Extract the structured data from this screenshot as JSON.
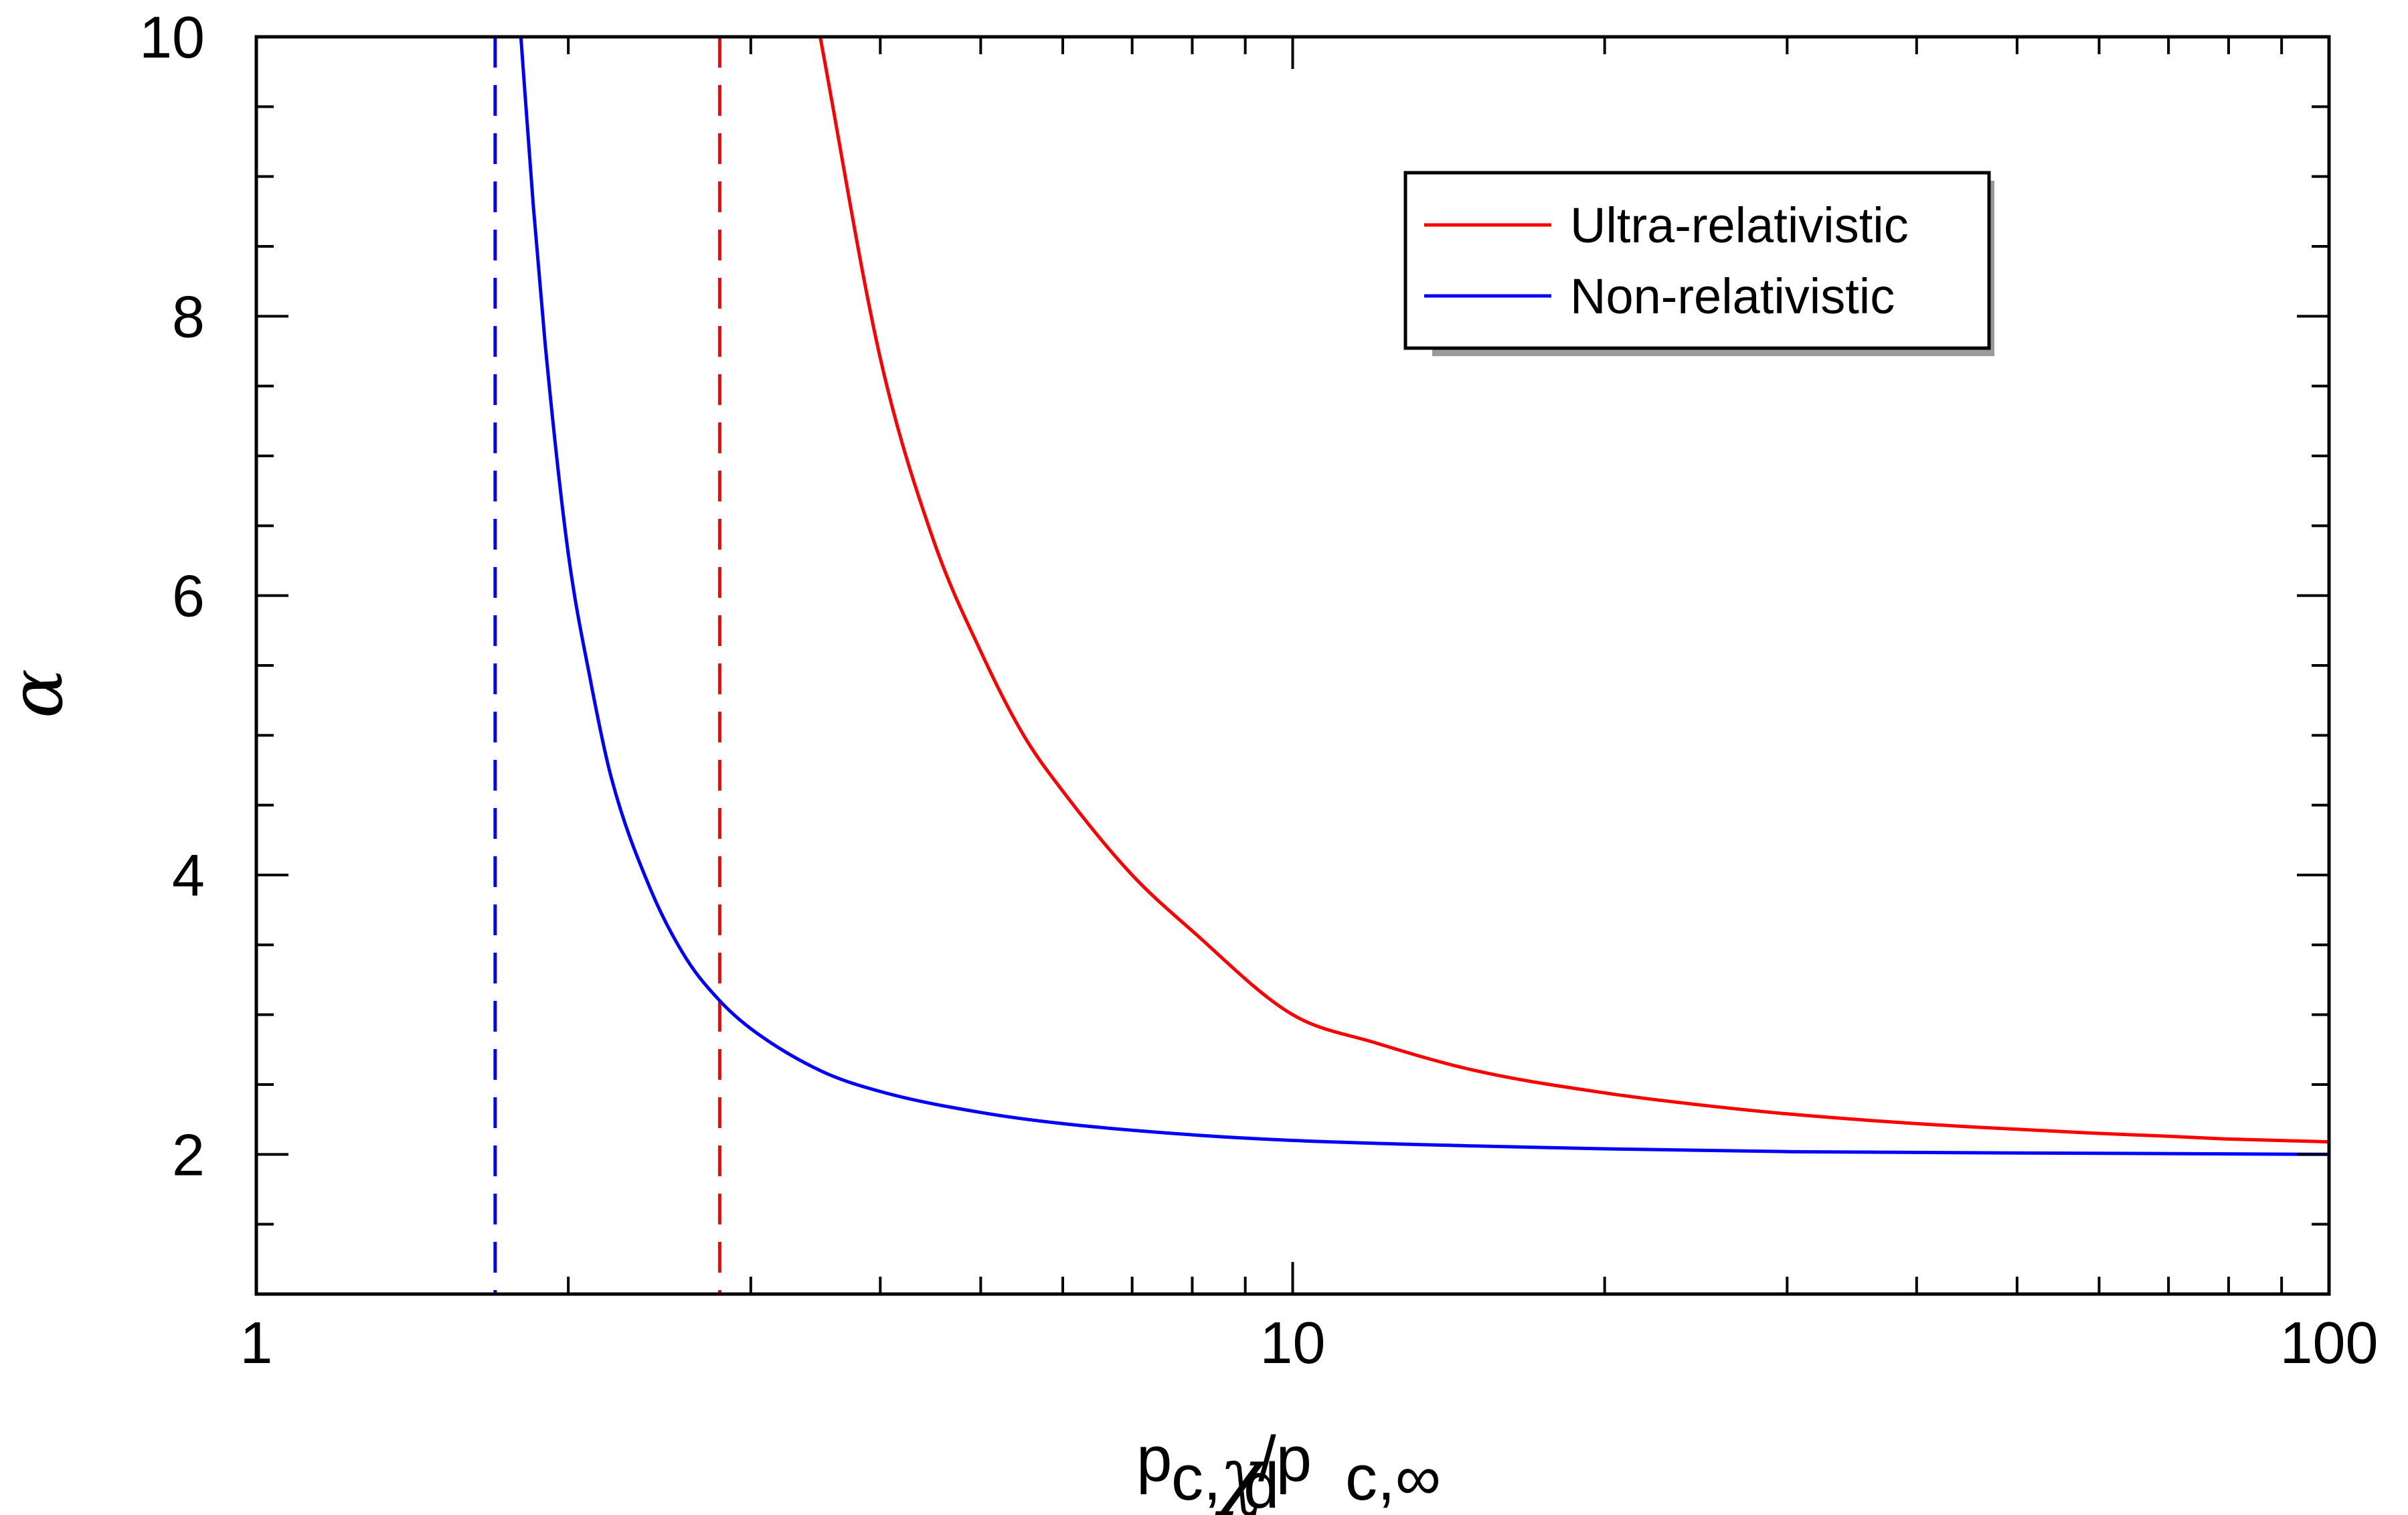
{
  "chart_data": {
    "type": "line",
    "title": "",
    "xscale": "log",
    "xlim": [
      1,
      100
    ],
    "ylim": [
      1,
      10
    ],
    "xticks": [
      "1",
      "10",
      "100"
    ],
    "yticks": [
      "2",
      "4",
      "6",
      "8",
      "10"
    ],
    "xlabel": {
      "main": "p",
      "sub1": "c,",
      "sub_chi": "χ",
      "sub_d": "d",
      "slash": "/p",
      "sub2": "c,∞"
    },
    "ylabel": "α",
    "legend_position": "top-right",
    "grid": false,
    "series": [
      {
        "name": "Ultra-relativistic",
        "color": "#ff0000",
        "style": "solid",
        "x": [
          3.5,
          4,
          4.5,
          5,
          5.5,
          6,
          7,
          8,
          10,
          12,
          15,
          20,
          25,
          30,
          40,
          50,
          60,
          70,
          80,
          100
        ],
        "y": [
          10.0,
          7.7,
          6.4,
          5.6,
          5.0,
          4.6,
          4.0,
          3.6,
          3.0,
          2.8,
          2.6,
          2.44,
          2.35,
          2.29,
          2.22,
          2.18,
          2.15,
          2.13,
          2.11,
          2.09
        ]
      },
      {
        "name": "Non-relativistic",
        "color": "#0000ff",
        "style": "solid",
        "x": [
          1.8,
          1.85,
          1.9,
          2,
          2.1,
          2.2,
          2.4,
          2.6,
          2.8,
          3,
          3.5,
          4,
          5,
          6,
          8,
          10,
          15,
          20,
          30,
          50,
          100
        ],
        "y": [
          10.0,
          8.8,
          7.8,
          6.3,
          5.4,
          4.7,
          3.9,
          3.4,
          3.1,
          2.9,
          2.6,
          2.45,
          2.3,
          2.22,
          2.14,
          2.1,
          2.06,
          2.04,
          2.02,
          2.01,
          2.0
        ]
      }
    ],
    "vlines": [
      {
        "x": 1.7,
        "color": "#0000ff",
        "style": "dashed"
      },
      {
        "x": 2.8,
        "color": "#ff0000",
        "style": "dashed"
      }
    ]
  }
}
